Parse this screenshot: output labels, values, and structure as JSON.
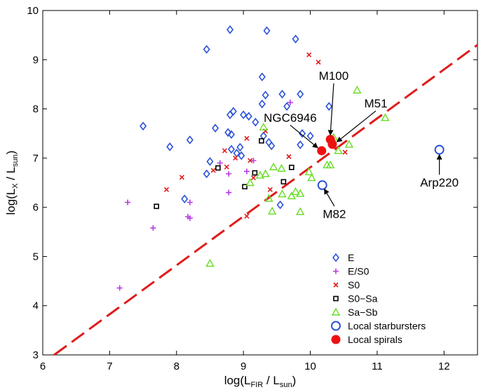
{
  "chart_data": {
    "type": "scatter",
    "title": "",
    "xlabel": {
      "main": "log(L",
      "sub1": "FIR",
      "mid": " / L",
      "sub2": "sun",
      "end": ")"
    },
    "ylabel": {
      "main": "log(L",
      "sub1": "X",
      "mid": " / L",
      "sub2": "sun",
      "end": ")"
    },
    "xlim": [
      6,
      12.5
    ],
    "ylim": [
      3,
      10
    ],
    "xticks": [
      6,
      7,
      8,
      9,
      10,
      11,
      12
    ],
    "yticks": [
      3,
      4,
      5,
      6,
      7,
      8,
      9,
      10
    ],
    "xtick_labels": [
      "6",
      "7",
      "8",
      "9",
      "10",
      "11",
      "12"
    ],
    "ytick_labels": [
      "3",
      "4",
      "5",
      "6",
      "7",
      "8",
      "9",
      "10"
    ],
    "grid": false,
    "legend_position": "lower-right",
    "colors": {
      "E": "#2b52d9",
      "E/S0": "#b63be6",
      "S0": "#e01b1b",
      "S0-Sa": "#000000",
      "Sa-Sb": "#66dd22",
      "starburst": "#2b52d9",
      "spiral": "#ee1111",
      "fit": "#e01b1b"
    },
    "fit_line": {
      "style": "dashed",
      "points": [
        [
          6.17,
          3.0
        ],
        [
          12.5,
          9.3
        ]
      ]
    },
    "series": [
      {
        "name": "E",
        "marker": "diamond",
        "points": [
          [
            7.5,
            7.65
          ],
          [
            7.9,
            7.23
          ],
          [
            8.2,
            7.37
          ],
          [
            8.12,
            6.17
          ],
          [
            8.45,
            9.21
          ],
          [
            8.8,
            9.61
          ],
          [
            9.35,
            9.59
          ],
          [
            9.78,
            9.42
          ],
          [
            8.58,
            7.61
          ],
          [
            8.77,
            7.52
          ],
          [
            8.8,
            7.88
          ],
          [
            8.85,
            7.95
          ],
          [
            8.82,
            7.48
          ],
          [
            8.82,
            7.18
          ],
          [
            8.95,
            7.22
          ],
          [
            8.5,
            6.93
          ],
          [
            8.45,
            6.68
          ],
          [
            8.9,
            7.1
          ],
          [
            8.97,
            7.05
          ],
          [
            9.0,
            7.88
          ],
          [
            9.08,
            7.85
          ],
          [
            9.18,
            7.73
          ],
          [
            9.28,
            8.1
          ],
          [
            9.33,
            8.28
          ],
          [
            9.28,
            8.65
          ],
          [
            9.3,
            7.45
          ],
          [
            9.38,
            7.32
          ],
          [
            9.42,
            7.25
          ],
          [
            9.58,
            8.3
          ],
          [
            9.65,
            8.05
          ],
          [
            9.85,
            8.3
          ],
          [
            9.88,
            7.5
          ],
          [
            9.85,
            7.27
          ],
          [
            10.0,
            7.45
          ],
          [
            10.28,
            8.05
          ],
          [
            9.55,
            6.05
          ]
        ]
      },
      {
        "name": "E/S0",
        "marker": "plus",
        "points": [
          [
            7.27,
            6.1
          ],
          [
            7.65,
            5.58
          ],
          [
            8.2,
            6.1
          ],
          [
            8.17,
            5.81
          ],
          [
            8.2,
            5.78
          ],
          [
            7.15,
            4.36
          ],
          [
            8.78,
            6.3
          ],
          [
            8.65,
            6.9
          ],
          [
            8.78,
            6.68
          ],
          [
            9.05,
            6.73
          ],
          [
            9.15,
            6.95
          ],
          [
            9.7,
            8.13
          ]
        ]
      },
      {
        "name": "S0",
        "marker": "x",
        "points": [
          [
            7.85,
            6.36
          ],
          [
            8.08,
            6.61
          ],
          [
            8.55,
            6.75
          ],
          [
            8.72,
            7.15
          ],
          [
            8.75,
            6.82
          ],
          [
            8.88,
            7.0
          ],
          [
            9.05,
            7.4
          ],
          [
            9.1,
            6.95
          ],
          [
            9.15,
            6.6
          ],
          [
            9.05,
            5.82
          ],
          [
            9.33,
            7.55
          ],
          [
            9.4,
            6.36
          ],
          [
            9.68,
            7.03
          ],
          [
            9.98,
            9.1
          ],
          [
            10.12,
            8.95
          ],
          [
            10.52,
            7.12
          ]
        ]
      },
      {
        "name": "S0-Sa",
        "marker": "square",
        "points": [
          [
            7.7,
            6.02
          ],
          [
            8.62,
            6.8
          ],
          [
            9.02,
            6.42
          ],
          [
            9.17,
            6.7
          ],
          [
            9.27,
            7.35
          ],
          [
            9.6,
            6.52
          ],
          [
            9.72,
            6.81
          ]
        ]
      },
      {
        "name": "Sa-Sb",
        "marker": "triangle",
        "points": [
          [
            8.5,
            4.86
          ],
          [
            9.1,
            6.5
          ],
          [
            9.25,
            6.65
          ],
          [
            9.3,
            7.63
          ],
          [
            9.33,
            6.68
          ],
          [
            9.38,
            6.18
          ],
          [
            9.43,
            5.92
          ],
          [
            9.45,
            6.82
          ],
          [
            9.57,
            6.79
          ],
          [
            9.58,
            6.27
          ],
          [
            9.72,
            6.23
          ],
          [
            9.78,
            6.32
          ],
          [
            9.85,
            5.91
          ],
          [
            9.85,
            6.28
          ],
          [
            9.98,
            6.72
          ],
          [
            10.02,
            6.6
          ],
          [
            10.25,
            6.86
          ],
          [
            10.3,
            6.86
          ],
          [
            10.35,
            7.42
          ],
          [
            10.42,
            7.15
          ],
          [
            10.58,
            7.28
          ],
          [
            10.7,
            8.38
          ],
          [
            11.12,
            7.82
          ]
        ]
      },
      {
        "name": "Local starbursters",
        "marker": "open-circle",
        "points": [
          [
            10.18,
            6.45
          ],
          [
            11.93,
            7.17
          ]
        ]
      },
      {
        "name": "Local spirals",
        "marker": "filled-circle",
        "points": [
          [
            10.17,
            7.15
          ],
          [
            10.3,
            7.38
          ],
          [
            10.33,
            7.28
          ]
        ]
      }
    ],
    "annotations": [
      {
        "text": "M100",
        "text_x": 10.35,
        "text_y": 8.59,
        "point_x": 10.3,
        "point_y": 7.47
      },
      {
        "text": "M51",
        "text_x": 10.98,
        "text_y": 8.03,
        "point_x": 10.4,
        "point_y": 7.33
      },
      {
        "text": "NGC6946",
        "text_x": 9.7,
        "text_y": 7.74,
        "point_x": 10.11,
        "point_y": 7.21
      },
      {
        "text": "M82",
        "text_x": 10.36,
        "text_y": 5.78,
        "point_x": 10.21,
        "point_y": 6.37
      },
      {
        "text": "Arp220",
        "text_x": 11.93,
        "text_y": 6.42,
        "point_x": 11.93,
        "point_y": 7.07
      }
    ],
    "legend": [
      {
        "label": "E",
        "marker": "diamond"
      },
      {
        "label": "E/S0",
        "marker": "plus"
      },
      {
        "label": "S0",
        "marker": "x"
      },
      {
        "label": "S0−Sa",
        "marker": "square"
      },
      {
        "label": "Sa−Sb",
        "marker": "triangle"
      },
      {
        "label": "Local starbursters",
        "marker": "open-circle"
      },
      {
        "label": "Local spirals",
        "marker": "filled-circle"
      }
    ]
  }
}
